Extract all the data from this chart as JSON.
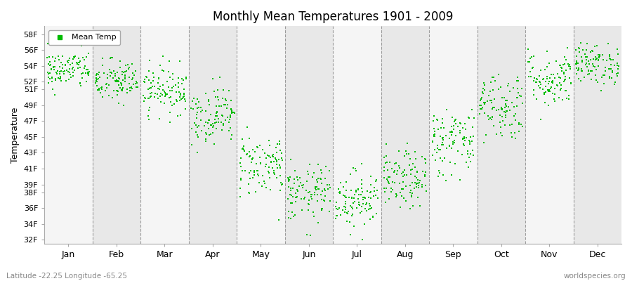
{
  "title": "Monthly Mean Temperatures 1901 - 2009",
  "ylabel": "Temperature",
  "xlabel_bottom_left": "Latitude -22.25 Longitude -65.25",
  "xlabel_bottom_right": "worldspecies.org",
  "legend_label": "Mean Temp",
  "dot_color": "#00bb00",
  "background_color": "#ffffff",
  "plot_bg_color_light": "#f5f5f5",
  "plot_bg_color_dark": "#e8e8e8",
  "ytick_labels": [
    "32F",
    "34F",
    "36F",
    "38F",
    "39F",
    "41F",
    "43F",
    "45F",
    "47F",
    "49F",
    "51F",
    "52F",
    "54F",
    "56F",
    "58F"
  ],
  "ytick_values": [
    32,
    34,
    36,
    38,
    39,
    41,
    43,
    45,
    47,
    49,
    51,
    52,
    54,
    56,
    58
  ],
  "ylim": [
    31.5,
    59.0
  ],
  "month_names": [
    "Jan",
    "Feb",
    "Mar",
    "Apr",
    "May",
    "Jun",
    "Jul",
    "Aug",
    "Sep",
    "Oct",
    "Nov",
    "Dec"
  ],
  "years": 109,
  "seed": 42,
  "mean_temps_F": [
    53.5,
    52.0,
    51.0,
    47.8,
    41.5,
    37.8,
    37.2,
    39.5,
    44.5,
    49.0,
    52.3,
    54.2
  ],
  "std_temps_F": [
    1.2,
    1.4,
    1.5,
    1.8,
    2.0,
    1.8,
    1.8,
    1.8,
    2.2,
    2.2,
    1.8,
    1.3
  ]
}
